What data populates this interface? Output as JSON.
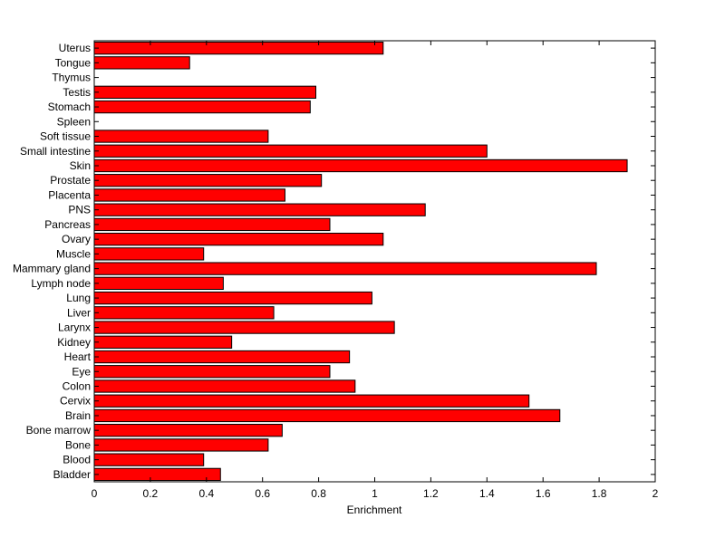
{
  "chart_data": {
    "type": "bar",
    "orientation": "horizontal",
    "title": "",
    "xlabel": "Enrichment",
    "ylabel": "",
    "xlim": [
      0,
      2
    ],
    "xticks": [
      "0",
      "0.2",
      "0.4",
      "0.6",
      "0.8",
      "1",
      "1.2",
      "1.4",
      "1.6",
      "1.8",
      "2"
    ],
    "grid": false,
    "bar_color": "#ff0000",
    "categories": [
      "Bladder",
      "Blood",
      "Bone",
      "Bone marrow",
      "Brain",
      "Cervix",
      "Colon",
      "Eye",
      "Heart",
      "Kidney",
      "Larynx",
      "Liver",
      "Lung",
      "Lymph node",
      "Mammary gland",
      "Muscle",
      "Ovary",
      "Pancreas",
      "PNS",
      "Placenta",
      "Prostate",
      "Skin",
      "Small intestine",
      "Soft tissue",
      "Spleen",
      "Stomach",
      "Testis",
      "Thymus",
      "Tongue",
      "Uterus"
    ],
    "values": [
      0.45,
      0.39,
      0.62,
      0.67,
      1.66,
      1.55,
      0.93,
      0.84,
      0.91,
      0.49,
      1.07,
      0.64,
      0.99,
      0.46,
      1.79,
      0.39,
      1.03,
      0.84,
      1.18,
      0.68,
      0.81,
      1.9,
      1.4,
      0.62,
      0,
      0.77,
      0.79,
      0,
      0.34,
      1.03
    ]
  }
}
